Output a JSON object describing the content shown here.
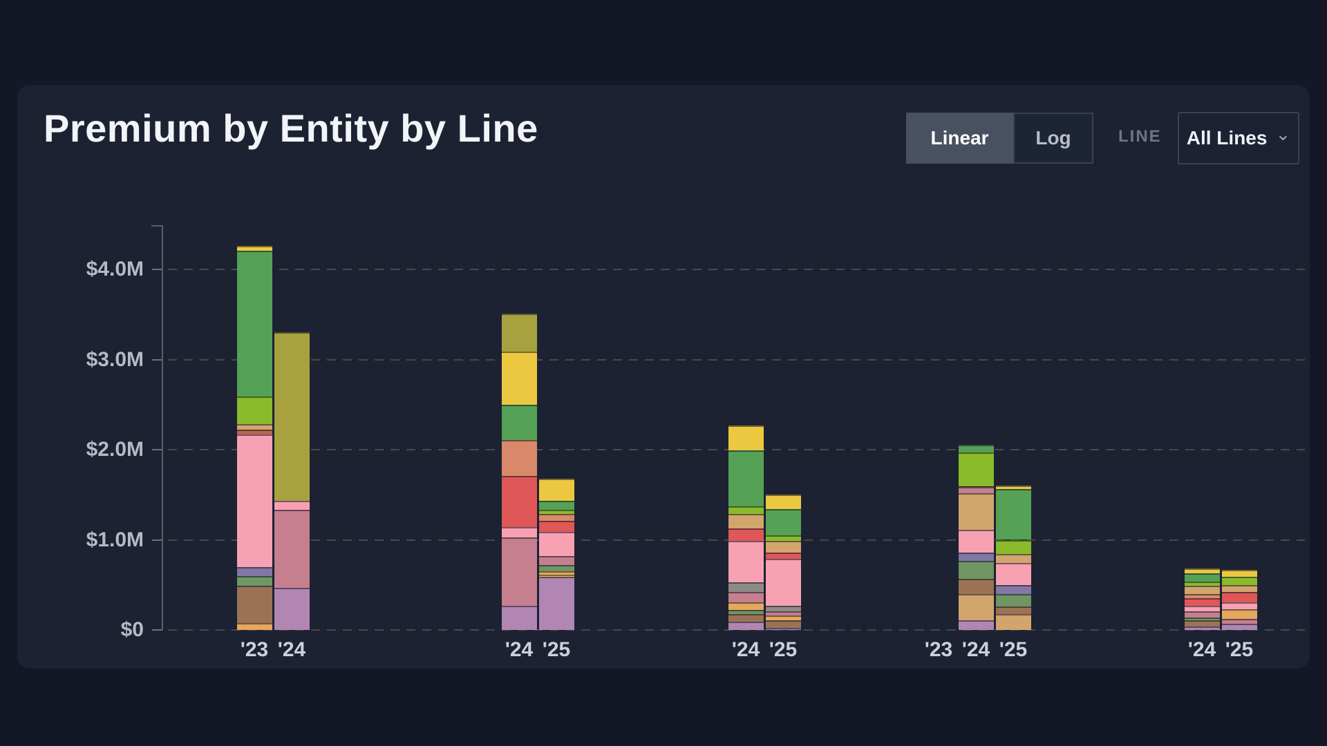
{
  "header": {
    "title": "Premium by Entity by Line"
  },
  "toolbar": {
    "linear_label": "Linear",
    "log_label": "Log",
    "scale_selected": "Linear",
    "line_filter_label": "LINE",
    "line_filter_value": "All Lines",
    "chevron_icon": "chevron-down"
  },
  "chart_data": {
    "type": "bar",
    "subtype": "stacked-grouped",
    "title": "Premium by Entity by Line",
    "unit": "USD millions",
    "ylabel": "",
    "xlabel": "",
    "ylim": [
      0,
      4.5
    ],
    "grid": "dashed-horizontal",
    "legend_position": "none",
    "y_ticks": [
      {
        "label": "$4.0M",
        "value": 4
      },
      {
        "label": "$3.0M",
        "value": 3
      },
      {
        "label": "$2.0M",
        "value": 2
      },
      {
        "label": "$1.0M",
        "value": 1
      },
      {
        "label": "$0",
        "value": 0
      }
    ],
    "palette": {
      "yellow": "#ecc840",
      "olive": "#a7a23f",
      "green": "#55a155",
      "lime": "#8abb2a",
      "sage": "#6f9663",
      "salmon": "#d9896a",
      "red": "#df5757",
      "rust": "#bb6651",
      "pink": "#f7a1b3",
      "mauve": "#c67f8e",
      "lavender": "#b286b2",
      "purpleblue": "#8277a5",
      "brown": "#9b7354",
      "tan": "#d2a56d",
      "orange": "#e6a85c",
      "gray": "#8e8b86"
    },
    "groups": [
      {
        "bars": [
          {
            "year": "'23",
            "total": 4.26,
            "segments": [
              [
                "orange",
                0.08
              ],
              [
                "brown",
                0.41
              ],
              [
                "sage",
                0.11
              ],
              [
                "purpleblue",
                0.1
              ],
              [
                "pink",
                1.47
              ],
              [
                "rust",
                0.05
              ],
              [
                "tan",
                0.06
              ],
              [
                "lime",
                0.31
              ],
              [
                "green",
                1.62
              ],
              [
                "yellow",
                0.05
              ]
            ]
          },
          {
            "year": "'24",
            "total": 3.3,
            "segments": [
              [
                "lavender",
                0.47
              ],
              [
                "mauve",
                0.86
              ],
              [
                "pink",
                0.1
              ],
              [
                "olive",
                1.87
              ]
            ]
          }
        ]
      },
      {
        "bars": [
          {
            "year": "'24",
            "total": 3.51,
            "segments": [
              [
                "lavender",
                0.27
              ],
              [
                "mauve",
                0.76
              ],
              [
                "pink",
                0.11
              ],
              [
                "red",
                0.57
              ],
              [
                "salmon",
                0.4
              ],
              [
                "green",
                0.39
              ],
              [
                "yellow",
                0.59
              ],
              [
                "olive",
                0.42
              ]
            ]
          },
          {
            "year": "'25",
            "total": 1.68,
            "segments": [
              [
                "lavender",
                0.59
              ],
              [
                "yellow",
                0.02
              ],
              [
                "orange",
                0.04
              ],
              [
                "sage",
                0.07
              ],
              [
                "mauve",
                0.1
              ],
              [
                "pink",
                0.27
              ],
              [
                "red",
                0.12
              ],
              [
                "salmon",
                0.08
              ],
              [
                "lime",
                0.04
              ],
              [
                "green",
                0.1
              ],
              [
                "yellow",
                0.25
              ]
            ]
          }
        ]
      },
      {
        "bars": [
          {
            "year": "'24",
            "total": 2.27,
            "segments": [
              [
                "lavender",
                0.09
              ],
              [
                "brown",
                0.09
              ],
              [
                "sage",
                0.04
              ],
              [
                "orange",
                0.09
              ],
              [
                "mauve",
                0.11
              ],
              [
                "gray",
                0.11
              ],
              [
                "pink",
                0.46
              ],
              [
                "red",
                0.14
              ],
              [
                "tan",
                0.16
              ],
              [
                "lime",
                0.08
              ],
              [
                "green",
                0.62
              ],
              [
                "yellow",
                0.28
              ]
            ]
          },
          {
            "year": "'25",
            "total": 1.5,
            "segments": [
              [
                "lavender",
                0.02
              ],
              [
                "brown",
                0.09
              ],
              [
                "orange",
                0.05
              ],
              [
                "mauve",
                0.05
              ],
              [
                "gray",
                0.06
              ],
              [
                "pink",
                0.52
              ],
              [
                "red",
                0.07
              ],
              [
                "tan",
                0.13
              ],
              [
                "lime",
                0.06
              ],
              [
                "green",
                0.29
              ],
              [
                "yellow",
                0.16
              ]
            ]
          }
        ]
      },
      {
        "bars": [
          {
            "year": "'23",
            "total": 0,
            "segments": null
          },
          {
            "year": "'24",
            "total": 2.05,
            "segments": [
              [
                "lavender",
                0.11
              ],
              [
                "tan",
                0.29
              ],
              [
                "brown",
                0.17
              ],
              [
                "sage",
                0.2
              ],
              [
                "purpleblue",
                0.09
              ],
              [
                "pink",
                0.25
              ],
              [
                "tan",
                0.41
              ],
              [
                "mauve",
                0.07
              ],
              [
                "lime",
                0.38
              ],
              [
                "green",
                0.08
              ]
            ]
          },
          {
            "year": "'25",
            "total": 1.6,
            "segments": [
              [
                "tan",
                0.18
              ],
              [
                "brown",
                0.08
              ],
              [
                "sage",
                0.14
              ],
              [
                "purpleblue",
                0.1
              ],
              [
                "pink",
                0.24
              ],
              [
                "tan",
                0.1
              ],
              [
                "lime",
                0.16
              ],
              [
                "green",
                0.56
              ],
              [
                "yellow",
                0.04
              ]
            ]
          }
        ]
      },
      {
        "bars": [
          {
            "year": "'24",
            "total": 0.68,
            "segments": [
              [
                "lavender",
                0.04
              ],
              [
                "brown",
                0.07
              ],
              [
                "sage",
                0.03
              ],
              [
                "mauve",
                0.07
              ],
              [
                "pink",
                0.06
              ],
              [
                "red",
                0.08
              ],
              [
                "salmon",
                0.05
              ],
              [
                "tan",
                0.09
              ],
              [
                "lime",
                0.05
              ],
              [
                "green",
                0.09
              ],
              [
                "yellow",
                0.05
              ]
            ]
          },
          {
            "year": "'25",
            "total": 0.67,
            "segments": [
              [
                "lavender",
                0.07
              ],
              [
                "mauve",
                0.05
              ],
              [
                "orange",
                0.11
              ],
              [
                "pink",
                0.08
              ],
              [
                "red",
                0.11
              ],
              [
                "tan",
                0.08
              ],
              [
                "lime",
                0.09
              ],
              [
                "yellow",
                0.08
              ]
            ]
          }
        ]
      }
    ]
  }
}
